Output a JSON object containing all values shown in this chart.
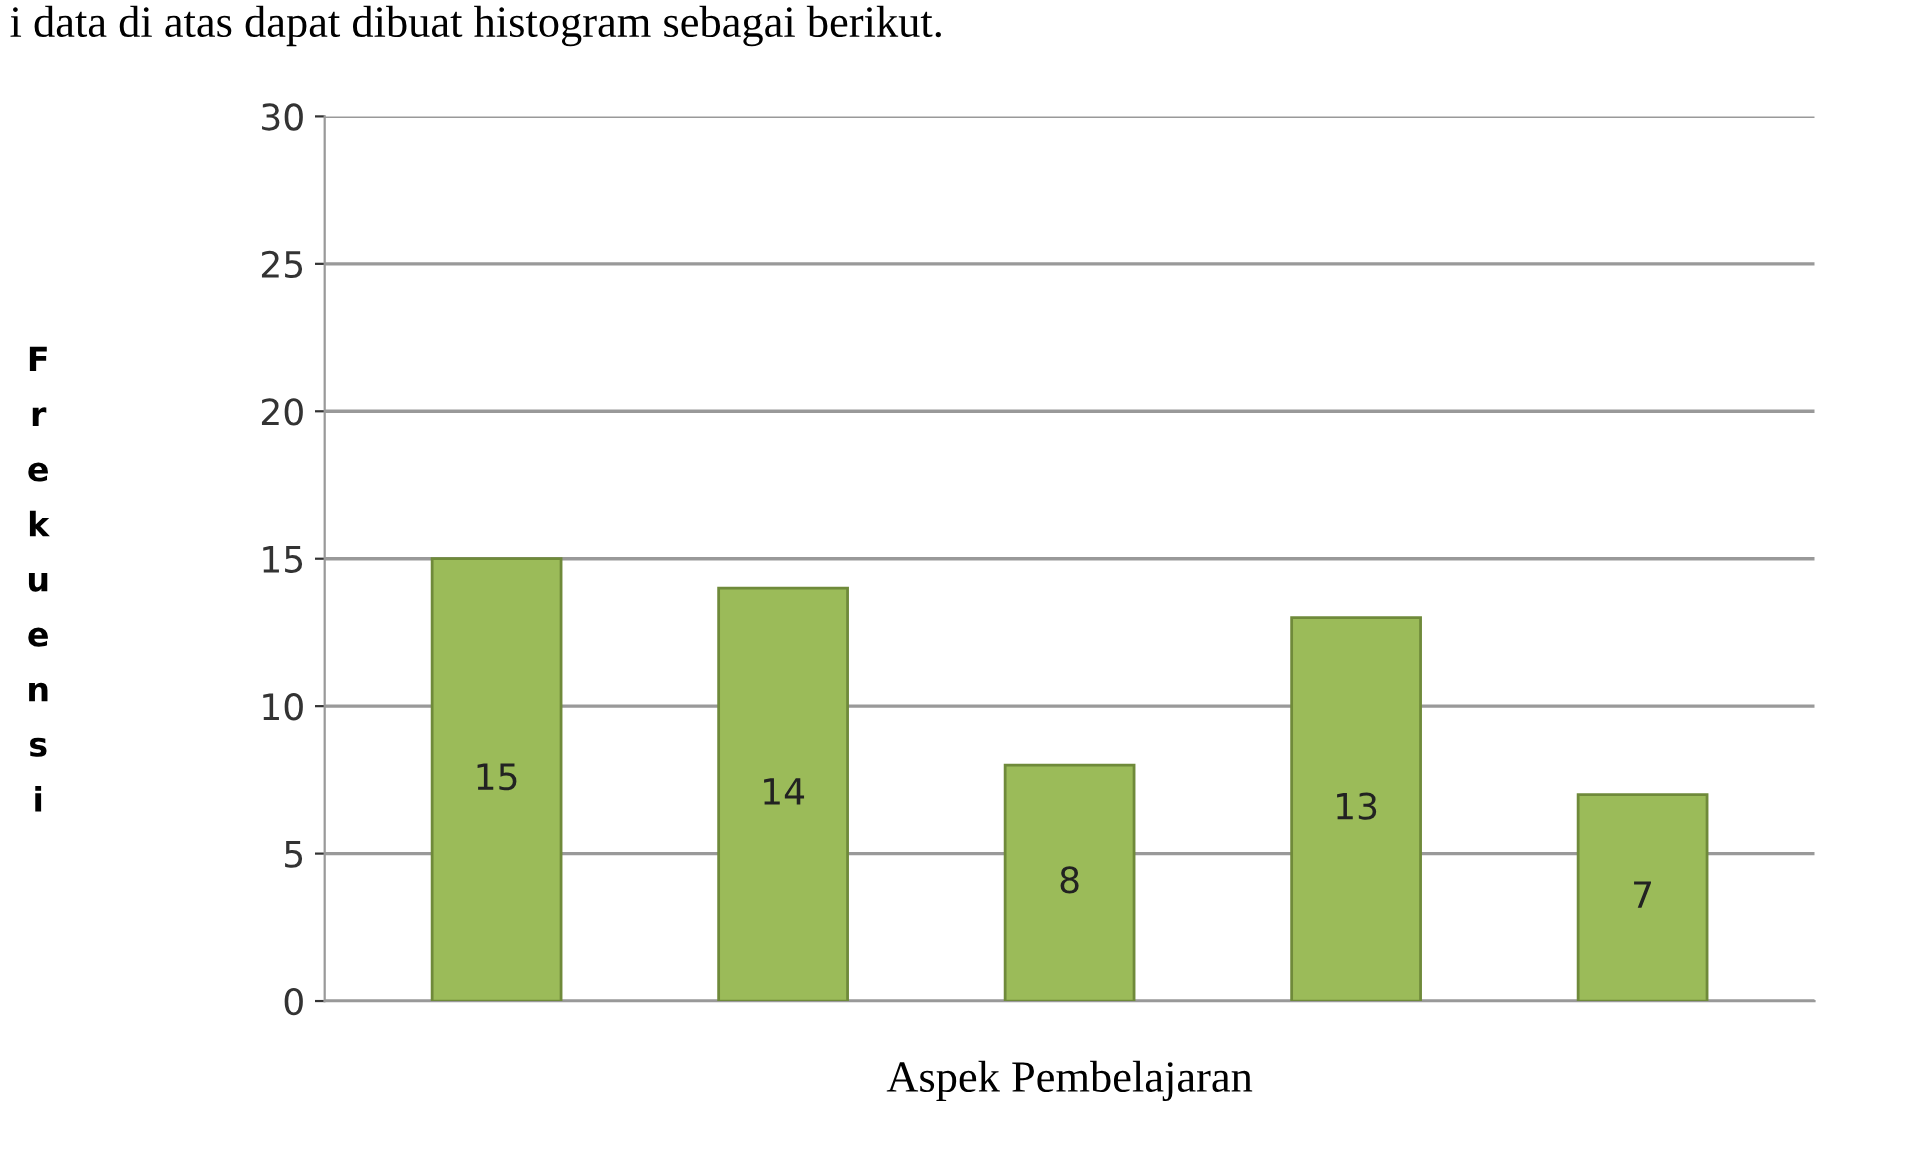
{
  "chart_data": {
    "type": "bar",
    "annotations": [
      "i data di atas dapat dibuat histogram sebagai berikut."
    ],
    "xlabel": "Aspek Pembelajaran",
    "ylabel": "Frekuensi",
    "categories": [
      null,
      null,
      null,
      null,
      null
    ],
    "values": [
      15,
      14,
      8,
      13,
      7
    ],
    "color": "#9bbb59",
    "ylim": [
      0,
      30
    ],
    "yticks": [
      0,
      5,
      10,
      15,
      20,
      25,
      30
    ],
    "grid": "y",
    "data_labels": true
  }
}
